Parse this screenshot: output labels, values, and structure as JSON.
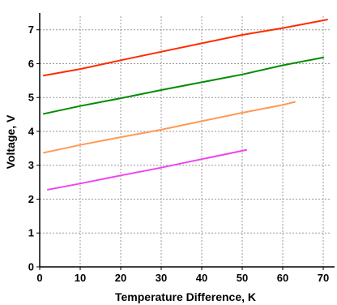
{
  "chart_data": {
    "type": "line",
    "title": "",
    "xlabel": "Temperature Difference, K",
    "ylabel": "Voltage, V",
    "xlim": [
      0,
      72
    ],
    "ylim": [
      0,
      7.4
    ],
    "xticks": [
      0,
      10,
      20,
      30,
      40,
      50,
      60,
      70
    ],
    "yticks": [
      0,
      1,
      2,
      3,
      4,
      5,
      6,
      7
    ],
    "grid": true,
    "legend": "none",
    "series": [
      {
        "color": "#ff2a00",
        "x": [
          1,
          10,
          20,
          30,
          40,
          50,
          60,
          71
        ],
        "y": [
          5.65,
          5.84,
          6.1,
          6.35,
          6.6,
          6.85,
          7.05,
          7.3
        ]
      },
      {
        "color": "#008c00",
        "x": [
          1,
          10,
          20,
          30,
          40,
          50,
          60,
          70
        ],
        "y": [
          4.52,
          4.75,
          4.98,
          5.22,
          5.45,
          5.68,
          5.95,
          6.18
        ]
      },
      {
        "color": "#ff9955",
        "x": [
          1,
          10,
          20,
          30,
          40,
          50,
          60,
          63
        ],
        "y": [
          3.37,
          3.6,
          3.83,
          4.05,
          4.3,
          4.55,
          4.78,
          4.87
        ]
      },
      {
        "color": "#ee44ee",
        "x": [
          2,
          10,
          20,
          30,
          40,
          51
        ],
        "y": [
          2.28,
          2.46,
          2.7,
          2.93,
          3.18,
          3.45
        ]
      }
    ]
  }
}
